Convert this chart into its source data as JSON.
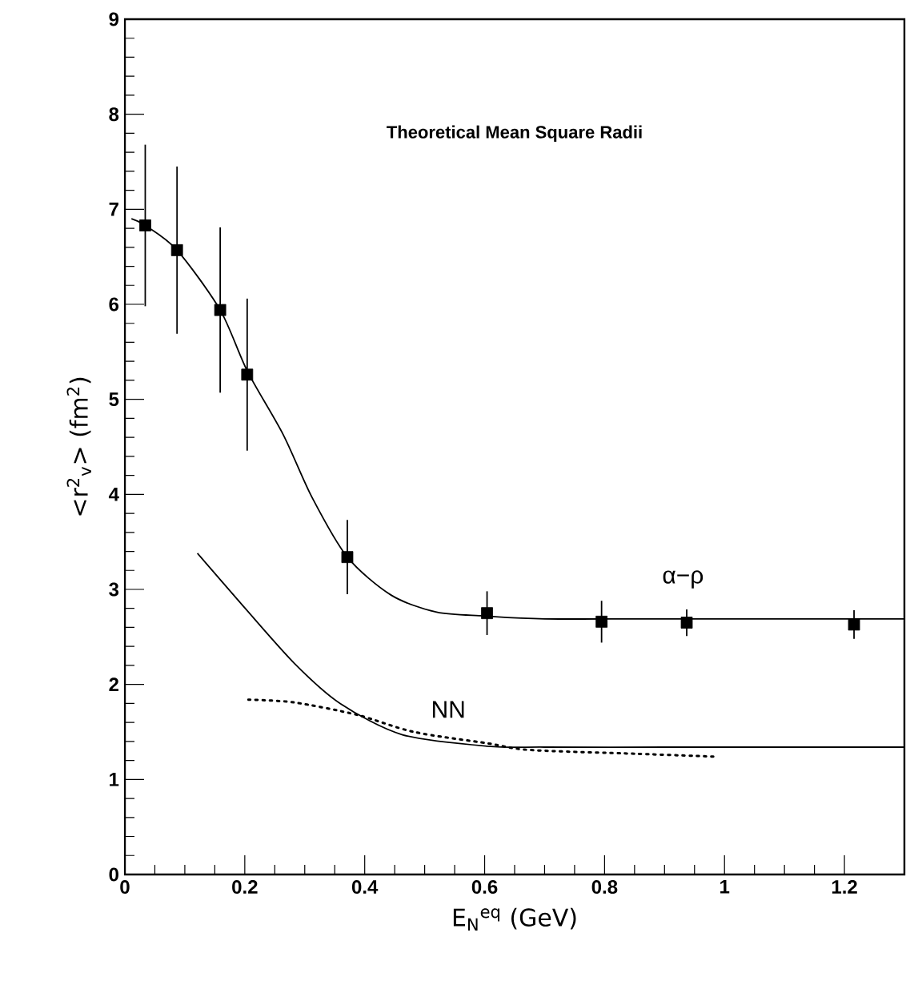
{
  "chart_data": {
    "type": "scatter",
    "title": "Theoretical Mean Square Radii",
    "xlabel": "E$_{N}$$^{eq}$ (GeV)",
    "ylabel": "<r$^{2}$$_{v}$> (fm$^{2}$)",
    "xlim": [
      0,
      1.3
    ],
    "ylim": [
      0,
      9
    ],
    "xticks": [
      0,
      0.2,
      0.4,
      0.6,
      0.8,
      1,
      1.2
    ],
    "yticks": [
      0,
      1,
      2,
      3,
      4,
      5,
      6,
      7,
      8,
      9
    ],
    "grid": false,
    "series": [
      {
        "color": "#000000",
        "marker": "square",
        "x": [
          0.034,
          0.087,
          0.159,
          0.204,
          0.371,
          0.604,
          0.795,
          0.937,
          1.216
        ],
        "values": [
          6.83,
          6.57,
          5.94,
          5.26,
          3.34,
          2.75,
          2.66,
          2.65,
          2.63
        ],
        "errors": [
          0.85,
          0.88,
          0.87,
          0.8,
          0.39,
          0.23,
          0.22,
          0.14,
          0.15
        ]
      },
      {
        "type": "line",
        "color": "#000000",
        "line_style": "solid",
        "x": [
          0.011,
          0.034,
          0.087,
          0.159,
          0.204,
          0.264,
          0.312,
          0.371,
          0.444,
          0.52,
          0.6,
          0.7,
          0.9,
          1.1,
          1.3
        ],
        "values": [
          6.9,
          6.83,
          6.57,
          5.94,
          5.3,
          4.63,
          3.97,
          3.34,
          2.94,
          2.76,
          2.72,
          2.69,
          2.69,
          2.69,
          2.69
        ]
      },
      {
        "type": "line",
        "color": "#000000",
        "line_style": "solid",
        "x": [
          0.121,
          0.198,
          0.283,
          0.359,
          0.463,
          0.605,
          0.7,
          0.9,
          1.1,
          1.3
        ],
        "values": [
          3.38,
          2.82,
          2.22,
          1.8,
          1.47,
          1.35,
          1.34,
          1.34,
          1.34,
          1.34
        ]
      },
      {
        "type": "line",
        "color": "#000000",
        "line_style": "dotted",
        "x": [
          0.206,
          0.283,
          0.387,
          0.482,
          0.605,
          0.676,
          0.853,
          0.985
        ],
        "values": [
          1.84,
          1.81,
          1.68,
          1.5,
          1.38,
          1.31,
          1.27,
          1.24
        ]
      }
    ],
    "annotations": [
      "α−ρ",
      "NN"
    ]
  }
}
